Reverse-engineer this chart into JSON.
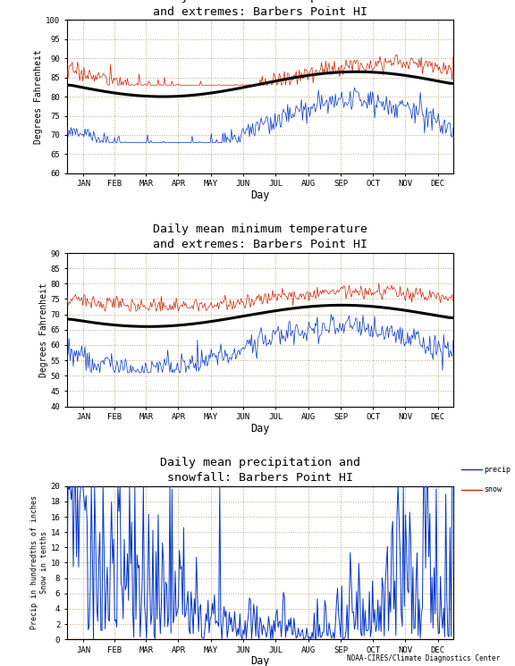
{
  "title1": "Daily mean maximum temperature\nand extremes: Barbers Point HI",
  "title2": "Daily mean minimum temperature\nand extremes: Barbers Point HI",
  "title3": "Daily mean precipitation and\nsnowfall: Barbers Point HI",
  "ylabel1": "Degrees Fahrenheit",
  "ylabel2": "Degrees Fahrenheit",
  "ylabel3": "Precip in hundredths of inches\nSnow in tenths",
  "xlabel": "Day",
  "months": [
    "JAN",
    "FEB",
    "MAR",
    "APR",
    "MAY",
    "JUN",
    "JUL",
    "AUG",
    "SEP",
    "OCT",
    "NOV",
    "DEC"
  ],
  "plot1_ylim": [
    60,
    100
  ],
  "plot1_yticks": [
    60,
    65,
    70,
    75,
    80,
    85,
    90,
    95,
    100
  ],
  "plot2_ylim": [
    40,
    90
  ],
  "plot2_yticks": [
    40,
    45,
    50,
    55,
    60,
    65,
    70,
    75,
    80,
    85,
    90
  ],
  "plot3_ylim": [
    0,
    20
  ],
  "plot3_yticks": [
    0,
    2,
    4,
    6,
    8,
    10,
    12,
    14,
    16,
    18,
    20
  ],
  "bg_color": "#ffffff",
  "plot_bg": "#ffffff",
  "grid_color": "#b8a878",
  "line_red": "#cc2200",
  "line_blue": "#0033cc",
  "line_black": "#000000",
  "footer": "NOAA-CIRES/Climate Diagnostics Center",
  "max_mean_jan": 80.0,
  "max_mean_peak": 86.5,
  "max_mean_peak_day": 274,
  "min_mean_jan": 66.0,
  "min_mean_peak": 73.0,
  "min_mean_peak_day": 260
}
